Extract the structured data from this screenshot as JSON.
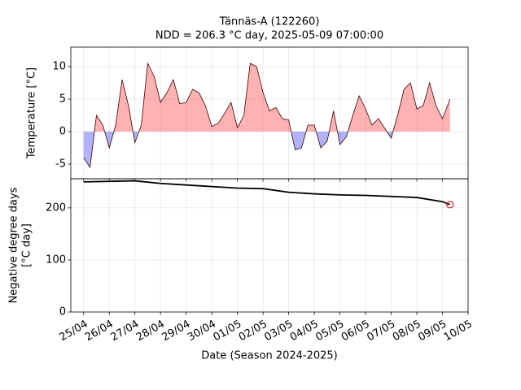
{
  "chart_data": [
    {
      "type": "area",
      "title": "Tännäs-A (122260)",
      "subtitle": "NDD = 206.3 °C day, 2025-05-09 07:00:00",
      "ylabel": "Temperature [°C]",
      "x": [
        "2025-04-25 00:00",
        "2025-04-25 06:00",
        "2025-04-25 12:00",
        "2025-04-25 18:00",
        "2025-04-26 00:00",
        "2025-04-26 06:00",
        "2025-04-26 12:00",
        "2025-04-26 18:00",
        "2025-04-27 00:00",
        "2025-04-27 06:00",
        "2025-04-27 12:00",
        "2025-04-27 18:00",
        "2025-04-28 00:00",
        "2025-04-28 06:00",
        "2025-04-28 12:00",
        "2025-04-28 18:00",
        "2025-04-29 00:00",
        "2025-04-29 06:00",
        "2025-04-29 12:00",
        "2025-04-29 18:00",
        "2025-04-30 00:00",
        "2025-04-30 06:00",
        "2025-04-30 12:00",
        "2025-04-30 18:00",
        "2025-05-01 00:00",
        "2025-05-01 06:00",
        "2025-05-01 12:00",
        "2025-05-01 18:00",
        "2025-05-02 00:00",
        "2025-05-02 06:00",
        "2025-05-02 12:00",
        "2025-05-02 18:00",
        "2025-05-03 00:00",
        "2025-05-03 06:00",
        "2025-05-03 12:00",
        "2025-05-03 18:00",
        "2025-05-04 00:00",
        "2025-05-04 06:00",
        "2025-05-04 12:00",
        "2025-05-04 18:00",
        "2025-05-05 00:00",
        "2025-05-05 06:00",
        "2025-05-05 12:00",
        "2025-05-05 18:00",
        "2025-05-06 00:00",
        "2025-05-06 06:00",
        "2025-05-06 12:00",
        "2025-05-06 18:00",
        "2025-05-07 00:00",
        "2025-05-07 06:00",
        "2025-05-07 12:00",
        "2025-05-07 18:00",
        "2025-05-08 00:00",
        "2025-05-08 06:00",
        "2025-05-08 12:00",
        "2025-05-08 18:00",
        "2025-05-09 00:00",
        "2025-05-09 06:00",
        "2025-05-09 07:00"
      ],
      "series": [
        {
          "name": "Temperature",
          "color": "#3a0000",
          "pos_color": "#ff0000",
          "neg_color": "#0000ff",
          "values": [
            -4,
            -5.5,
            2.5,
            1,
            -2.5,
            1,
            8,
            4,
            -1.7,
            1,
            10.5,
            8.5,
            4.5,
            6,
            8,
            4.3,
            4.5,
            6.5,
            6,
            4,
            0.8,
            1.3,
            2.8,
            4.5,
            0.6,
            2.5,
            10.5,
            10,
            6,
            3.2,
            3.7,
            2,
            1.8,
            -2.8,
            -2.5,
            1,
            1,
            -2.5,
            -1.5,
            3.2,
            -2,
            -0.8,
            2.5,
            5.5,
            3.5,
            1,
            2,
            0.5,
            -1,
            2.5,
            6.5,
            7.5,
            3.5,
            4,
            7.5,
            4,
            2,
            4.5,
            5
          ]
        }
      ],
      "ylim": [
        -7.25,
        13
      ],
      "yticks": [
        -5,
        0,
        5,
        10
      ],
      "grid": true
    },
    {
      "type": "line",
      "ylabel": [
        "Negative degree days",
        "[°C day]"
      ],
      "xlabel": "Date (Season 2024-2025)",
      "x": [
        "2025-04-25 00:00",
        "2025-04-26 00:00",
        "2025-04-27 00:00",
        "2025-04-28 00:00",
        "2025-04-29 00:00",
        "2025-04-30 00:00",
        "2025-05-01 00:00",
        "2025-05-02 00:00",
        "2025-05-03 00:00",
        "2025-05-04 00:00",
        "2025-05-05 00:00",
        "2025-05-06 00:00",
        "2025-05-07 00:00",
        "2025-05-08 00:00",
        "2025-05-09 00:00",
        "2025-05-09 07:00"
      ],
      "series": [
        {
          "name": "NDD",
          "color": "#000000",
          "marker_color": "#d62728",
          "values": [
            250,
            251,
            252,
            247,
            244,
            241,
            238,
            237,
            230,
            227,
            225,
            224,
            222,
            220,
            212,
            206.3
          ]
        }
      ],
      "ylim": [
        0,
        256
      ],
      "yticks": [
        0,
        100,
        200
      ],
      "grid": true,
      "xlim": [
        "2025-04-24 12:00",
        "2025-05-10 00:00"
      ],
      "xticks": [
        {
          "value": "2025-04-25",
          "label": "25/04"
        },
        {
          "value": "2025-04-26",
          "label": "26/04"
        },
        {
          "value": "2025-04-27",
          "label": "27/04"
        },
        {
          "value": "2025-04-28",
          "label": "28/04"
        },
        {
          "value": "2025-04-29",
          "label": "29/04"
        },
        {
          "value": "2025-04-30",
          "label": "30/04"
        },
        {
          "value": "2025-05-01",
          "label": "01/05"
        },
        {
          "value": "2025-05-02",
          "label": "02/05"
        },
        {
          "value": "2025-05-03",
          "label": "03/05"
        },
        {
          "value": "2025-05-04",
          "label": "04/05"
        },
        {
          "value": "2025-05-05",
          "label": "05/05"
        },
        {
          "value": "2025-05-06",
          "label": "06/05"
        },
        {
          "value": "2025-05-07",
          "label": "07/05"
        },
        {
          "value": "2025-05-08",
          "label": "08/05"
        },
        {
          "value": "2025-05-09",
          "label": "09/05"
        },
        {
          "value": "2025-05-10",
          "label": "10/05"
        }
      ]
    }
  ]
}
